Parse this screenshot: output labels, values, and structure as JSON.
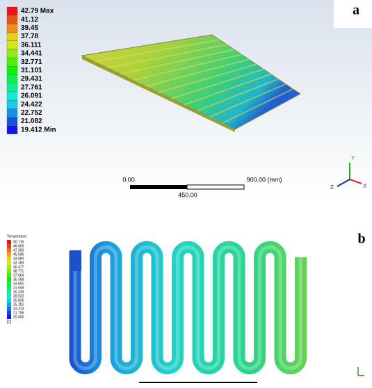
{
  "panel_a": {
    "label": "a",
    "legend": [
      "42.79 Max",
      "41.12",
      "39.45",
      "37.78",
      "36.111",
      "34.441",
      "32.771",
      "31.101",
      "29.431",
      "27.761",
      "26.091",
      "24.422",
      "22.752",
      "21.082",
      "19.412 Min"
    ],
    "scale": {
      "start": "0.00",
      "end": "900.00 (mm)",
      "mid": "450.00"
    },
    "axes": [
      "X",
      "Y",
      "Z"
    ]
  },
  "panel_b": {
    "label": "b",
    "legend_title": "Temperature",
    "legend": [
      "50.716",
      "49.009",
      "47.303",
      "45.596",
      "43.890",
      "42.183",
      "40.477",
      "38.771",
      "37.064",
      "35.358",
      "33.651",
      "31.945",
      "30.239",
      "28.532",
      "26.826",
      "25.119",
      "23.413",
      "21.706",
      "20.000"
    ],
    "unit": "[C]"
  }
}
